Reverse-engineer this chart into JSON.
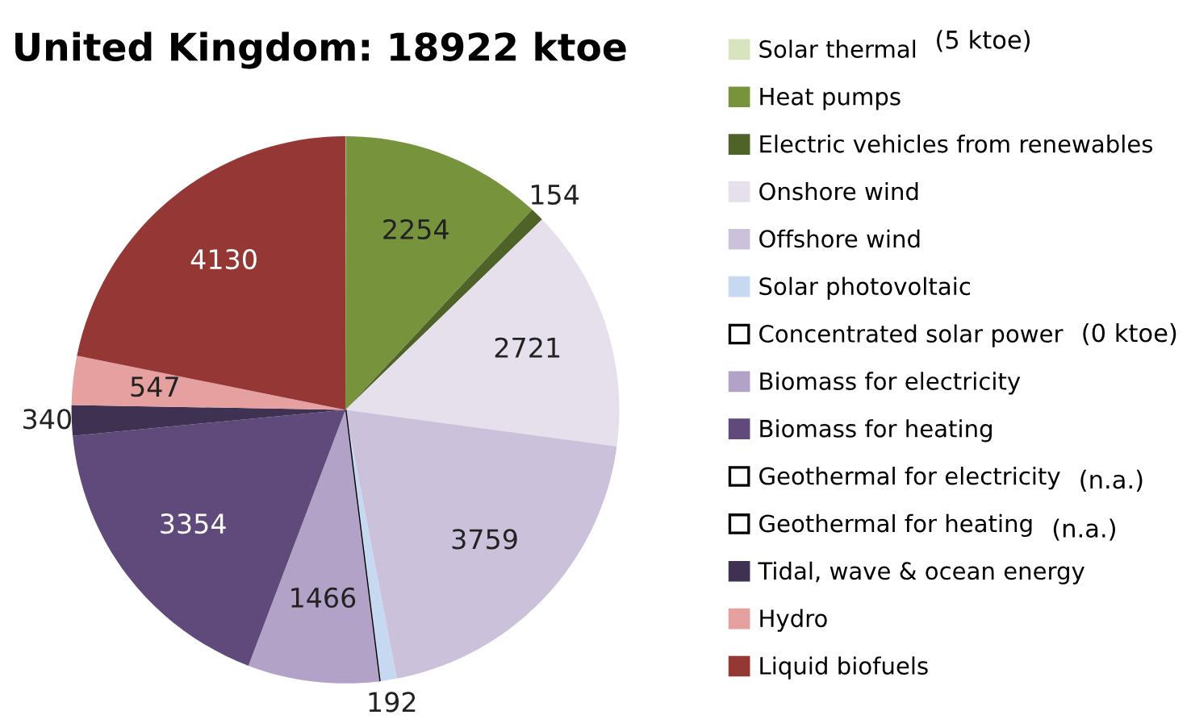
{
  "chart_data": {
    "type": "pie",
    "title": "United Kingdom: 18922 ktoe",
    "categories": [
      "Solar thermal",
      "Heat pumps",
      "Electric vehicles from renewables",
      "Onshore wind",
      "Offshore wind",
      "Solar photovoltaic",
      "Concentrated solar power",
      "Biomass for electricity",
      "Biomass for heating",
      "Geothermal for electricity",
      "Geothermal for heating",
      "Tidal, wave & ocean energy",
      "Hydro",
      "Liquid biofuels"
    ],
    "values": [
      5,
      2254,
      154,
      2721,
      3759,
      192,
      0,
      1466,
      3354,
      null,
      null,
      340,
      547,
      4130
    ],
    "colors": [
      "#d7e4bd",
      "#77933c",
      "#4f6228",
      "#e6e0ec",
      "#ccc1da",
      "#c6d9f1",
      "#ffffff",
      "#b3a2c7",
      "#604a7b",
      "#ffffff",
      "#ffffff",
      "#3f3151",
      "#e6a0a0",
      "#953735"
    ],
    "value_labels": [
      "(5 ktoe)",
      "2254",
      "154",
      "2721",
      "3759",
      "192",
      "(0 ktoe)",
      "1466",
      "3354",
      "(n.a.)",
      "(n.a.)",
      "340",
      "547",
      "4130"
    ],
    "legend": "right"
  }
}
